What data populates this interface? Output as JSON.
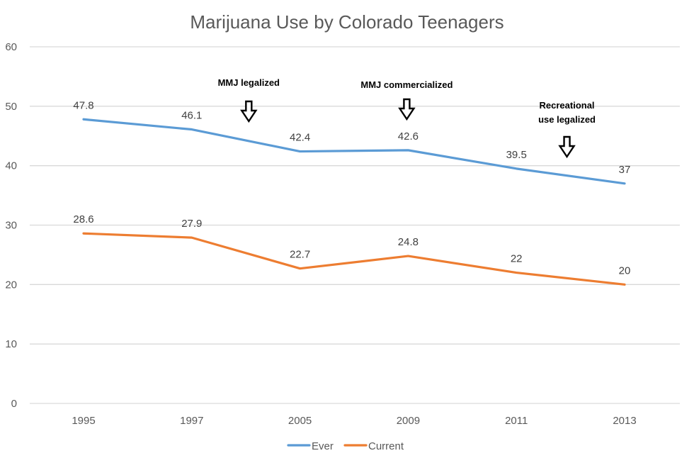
{
  "chart_data": {
    "type": "line",
    "title": "Marijuana Use by Colorado Teenagers",
    "xlabel": "",
    "ylabel": "",
    "categories": [
      "1995",
      "1997",
      "2005",
      "2009",
      "2011",
      "2013"
    ],
    "ylim": [
      0,
      60
    ],
    "yticks": [
      0,
      10,
      20,
      30,
      40,
      50,
      60
    ],
    "ytick_labels": [
      "0",
      "10",
      "20",
      "30",
      "40",
      "50",
      "60"
    ],
    "grid": true,
    "legend_position": "bottom",
    "series": [
      {
        "name": "Ever",
        "color": "#5b9bd5",
        "values": [
          47.8,
          46.1,
          42.4,
          42.6,
          39.5,
          37
        ],
        "labels": [
          "47.8",
          "46.1",
          "42.4",
          "42.6",
          "39.5",
          "37"
        ]
      },
      {
        "name": "Current",
        "color": "#ed7d31",
        "values": [
          28.6,
          27.9,
          22.7,
          24.8,
          22,
          20
        ],
        "labels": [
          "28.6",
          "27.9",
          "22.7",
          "24.8",
          "22",
          "20"
        ]
      }
    ],
    "annotations": [
      {
        "lines": [
          "MMJ legalized"
        ],
        "between": [
          "1997",
          "2005"
        ],
        "position": 0.54
      },
      {
        "lines": [
          "MMJ commercialized"
        ],
        "between": [
          "2009",
          "2009"
        ],
        "position": 0
      },
      {
        "lines": [
          "Recreational",
          "use legalized"
        ],
        "between": [
          "2011",
          "2013"
        ],
        "position": 0.48
      }
    ]
  }
}
